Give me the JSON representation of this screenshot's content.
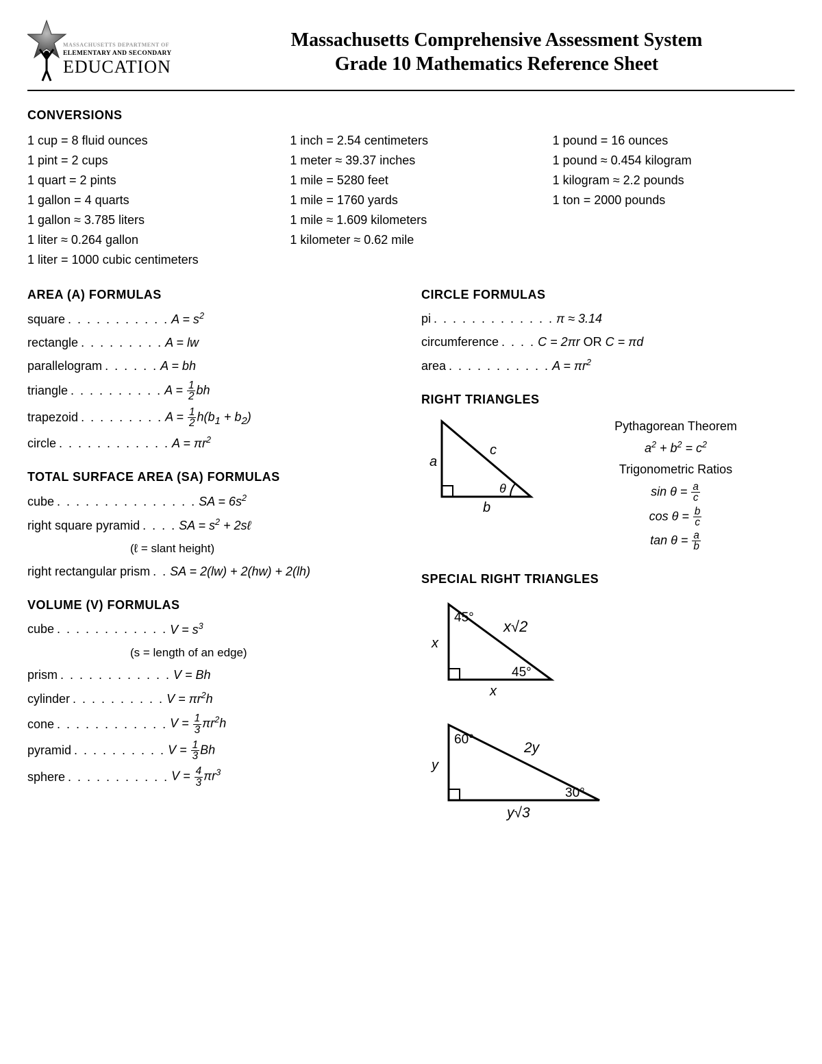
{
  "header": {
    "dept_line1": "MASSACHUSETTS DEPARTMENT OF",
    "dept_line2": "ELEMENTARY AND SECONDARY",
    "dept_line3": "EDUCATION",
    "title_line1": "Massachusetts Comprehensive Assessment System",
    "title_line2": "Grade 10 Mathematics Reference Sheet"
  },
  "conversions": {
    "heading": "CONVERSIONS",
    "col1": [
      "1 cup = 8 fluid ounces",
      "1 pint = 2 cups",
      "1 quart = 2 pints",
      "1 gallon = 4 quarts",
      "1 gallon ≈ 3.785 liters",
      "1 liter ≈ 0.264 gallon",
      "1 liter = 1000 cubic centimeters"
    ],
    "col2": [
      "1 inch = 2.54 centimeters",
      "1 meter ≈ 39.37 inches",
      "1 mile = 5280 feet",
      "1 mile = 1760 yards",
      "1 mile ≈ 1.609 kilometers",
      "1 kilometer ≈ 0.62 mile"
    ],
    "col3": [
      "1 pound = 16 ounces",
      "1 pound ≈ 0.454 kilogram",
      "1 kilogram ≈ 2.2 pounds",
      "1 ton = 2000 pounds"
    ]
  },
  "area": {
    "heading": "AREA (A) FORMULAS",
    "rows": [
      {
        "label": "square",
        "dots": ". . . . . . . . . . .",
        "expr": "A = s<sup>2</sup>"
      },
      {
        "label": "rectangle",
        "dots": ". . . . . . . . .",
        "expr": "A = lw"
      },
      {
        "label": "parallelogram",
        "dots": ". . . . . .",
        "expr": "A = bh"
      },
      {
        "label": "triangle",
        "dots": ". . . . . . . . . .",
        "expr": "A = <span class='frac'><span class='num'>1</span><span class='den'>2</span></span>bh"
      },
      {
        "label": "trapezoid",
        "dots": ". . . . . . . . .",
        "expr": "A = <span class='frac'><span class='num'>1</span><span class='den'>2</span></span>h(b<sub>1</sub> + b<sub>2</sub>)"
      },
      {
        "label": "circle",
        "dots": ". . . . . . . . . . . .",
        "expr": "A = πr<sup>2</sup>"
      }
    ]
  },
  "circle": {
    "heading": "CIRCLE FORMULAS",
    "rows": [
      {
        "label": "pi",
        "dots": ". . . . . . . . . . . . .",
        "expr": "π ≈ 3.14"
      },
      {
        "label": "circumference",
        "dots": " . . . .",
        "expr": "C = 2πr <span style='font-style:normal'>OR</span> C = πd"
      },
      {
        "label": "area",
        "dots": ". . . . . . . . . . .",
        "expr": "A = πr<sup>2</sup>"
      }
    ]
  },
  "sa": {
    "heading": "TOTAL SURFACE AREA (SA) FORMULAS",
    "rows": [
      {
        "label": "cube",
        "dots": ". . . . . . . . . . . . . . .",
        "expr": "SA = 6s<sup>2</sup>"
      },
      {
        "label": "right square pyramid",
        "dots": ". . . .",
        "expr": "SA = s<sup>2</sup> + 2sℓ"
      },
      {
        "label": "",
        "dots": "",
        "expr": "<span style='font-style:normal'>(ℓ = slant height)</span>",
        "note": true
      },
      {
        "label": "right rectangular prism",
        "dots": ". .",
        "expr": "SA = 2(lw) + 2(hw) + 2(lh)"
      }
    ]
  },
  "volume": {
    "heading": "VOLUME (V) FORMULAS",
    "rows": [
      {
        "label": "cube",
        "dots": ". . . . . . . . . . . .",
        "expr": "V = s<sup>3</sup>"
      },
      {
        "label": "",
        "dots": "",
        "expr": "<span style='font-style:normal'>(s = length of an edge)</span>",
        "note": true
      },
      {
        "label": "prism",
        "dots": ". . . . . . . . . . . .",
        "expr": "V = Bh"
      },
      {
        "label": "cylinder",
        "dots": ". . . . . . . . . .",
        "expr": "V = πr<sup>2</sup>h"
      },
      {
        "label": "cone",
        "dots": ". . . . . . . . . . . .",
        "expr": "V = <span class='frac'><span class='num'>1</span><span class='den'>3</span></span>πr<sup>2</sup>h"
      },
      {
        "label": "pyramid",
        "dots": ". . . . . . . . . .",
        "expr": "V = <span class='frac'><span class='num'>1</span><span class='den'>3</span></span>Bh"
      },
      {
        "label": "sphere",
        "dots": ". . . . . . . . . . .",
        "expr": "V = <span class='frac'><span class='num'>4</span><span class='den'>3</span></span>πr<sup>3</sup>"
      }
    ]
  },
  "right_triangles": {
    "heading": "RIGHT TRIANGLES",
    "pyth_label": "Pythagorean Theorem",
    "pyth": "a<sup>2</sup> + b<sup>2</sup> = c<sup>2</sup>",
    "trig_label": "Trigonometric Ratios",
    "sin": "sin θ = <span class='frac'><span class='num'>a</span><span class='den'>c</span></span>",
    "cos": "cos θ = <span class='frac'><span class='num'>b</span><span class='den'>c</span></span>",
    "tan": "tan θ = <span class='frac'><span class='num'>a</span><span class='den'>b</span></span>",
    "labels": {
      "a": "a",
      "b": "b",
      "c": "c",
      "theta": "θ"
    }
  },
  "special_rt": {
    "heading": "SPECIAL RIGHT TRIANGLES",
    "t45": {
      "x": "x",
      "x2": "x√2",
      "a45": "45°"
    },
    "t3060": {
      "y": "y",
      "y2": "2y",
      "y3": "y√3",
      "a60": "60°",
      "a30": "30°"
    }
  },
  "colors": {
    "text": "#000000",
    "bg": "#ffffff",
    "rule": "#000000"
  }
}
